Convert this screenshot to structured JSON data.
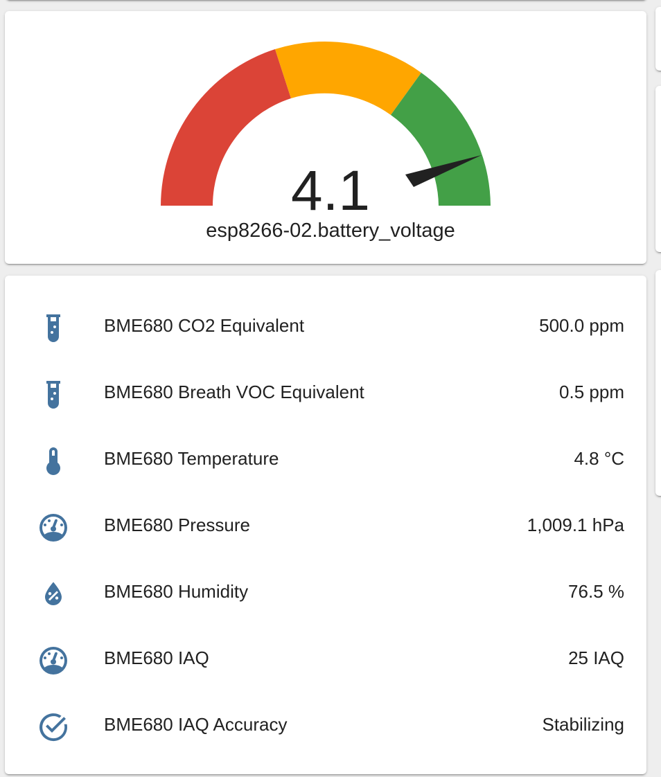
{
  "gauge": {
    "value": "4.1",
    "numeric_value": 4.1,
    "name": "esp8266-02.battery_voltage",
    "segments": [
      {
        "label": "red",
        "color": "#db4437"
      },
      {
        "label": "yellow",
        "color": "#ffa600"
      },
      {
        "label": "green",
        "color": "#43a047"
      }
    ],
    "needle_color": "#212121"
  },
  "entities": [
    {
      "icon": "test-tube-icon",
      "name": "BME680 CO2 Equivalent",
      "state": "500.0 ppm"
    },
    {
      "icon": "test-tube-icon",
      "name": "BME680 Breath VOC Equivalent",
      "state": "0.5 ppm"
    },
    {
      "icon": "thermometer-icon",
      "name": "BME680 Temperature",
      "state": "4.8 °C"
    },
    {
      "icon": "gauge-icon",
      "name": "BME680 Pressure",
      "state": "1,009.1 hPa"
    },
    {
      "icon": "water-percent-icon",
      "name": "BME680 Humidity",
      "state": "76.5 %"
    },
    {
      "icon": "gauge-icon",
      "name": "BME680 IAQ",
      "state": "25 IAQ"
    },
    {
      "icon": "check-circle-outline-icon",
      "name": "BME680 IAQ Accuracy",
      "state": "Stabilizing"
    }
  ],
  "icon_color": "#44739e"
}
